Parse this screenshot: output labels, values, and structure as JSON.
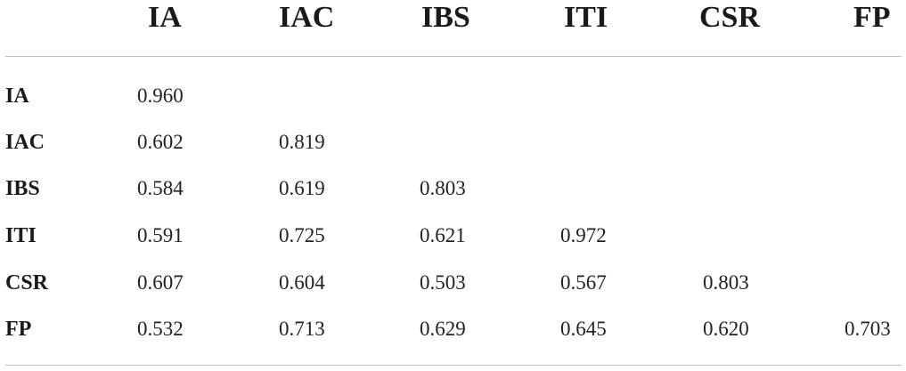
{
  "table": {
    "columns": [
      "IA",
      "IAC",
      "IBS",
      "ITI",
      "CSR",
      "FP"
    ],
    "rows": [
      {
        "label": "IA",
        "values": [
          "0.960"
        ]
      },
      {
        "label": "IAC",
        "values": [
          "0.602",
          "0.819"
        ]
      },
      {
        "label": "IBS",
        "values": [
          "0.584",
          "0.619",
          "0.803"
        ]
      },
      {
        "label": "ITI",
        "values": [
          "0.591",
          "0.725",
          "0.621",
          "0.972"
        ]
      },
      {
        "label": "CSR",
        "values": [
          "0.607",
          "0.604",
          "0.503",
          "0.567",
          "0.803"
        ]
      },
      {
        "label": "FP",
        "values": [
          "0.532",
          "0.713",
          "0.629",
          "0.645",
          "0.620",
          "0.703"
        ]
      }
    ]
  }
}
